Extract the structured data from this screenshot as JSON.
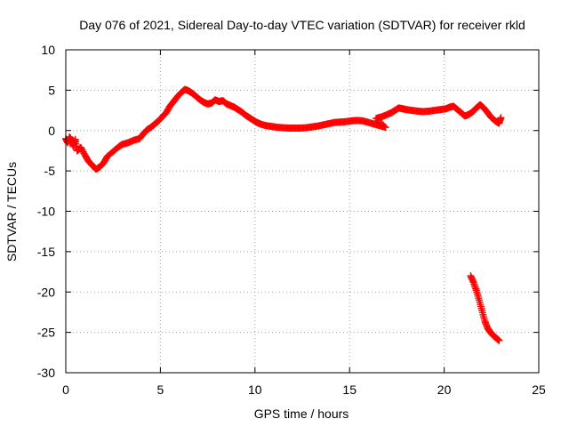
{
  "chart_data": {
    "type": "scatter",
    "title": "Day 076 of 2021, Sidereal Day-to-day VTEC variation (SDTVAR) for receiver rkld",
    "xlabel": "GPS time / hours",
    "ylabel": "SDTVAR / TECUs",
    "xlim": [
      0,
      25
    ],
    "ylim": [
      -30,
      10
    ],
    "xticks": [
      0,
      5,
      10,
      15,
      20,
      25
    ],
    "yticks": [
      -30,
      -25,
      -20,
      -15,
      -10,
      -5,
      0,
      5,
      10
    ],
    "grid": true,
    "marker": "+",
    "colors": {
      "series": "#ff0000",
      "grid": "#a0a0a0",
      "axis": "#000000"
    },
    "series": [
      {
        "name": "main",
        "points": [
          [
            0.0,
            -1.0
          ],
          [
            0.1,
            -1.5
          ],
          [
            0.2,
            -0.8
          ],
          [
            0.3,
            -1.2
          ],
          [
            0.4,
            -2.0
          ],
          [
            0.5,
            -1.1
          ],
          [
            0.6,
            -2.5
          ],
          [
            0.8,
            -2.1
          ],
          [
            1.0,
            -3.0
          ],
          [
            1.2,
            -3.8
          ],
          [
            1.4,
            -4.3
          ],
          [
            1.6,
            -4.8
          ],
          [
            1.8,
            -4.5
          ],
          [
            2.0,
            -4.0
          ],
          [
            2.2,
            -3.2
          ],
          [
            2.5,
            -2.6
          ],
          [
            2.8,
            -2.0
          ],
          [
            3.0,
            -1.7
          ],
          [
            3.3,
            -1.5
          ],
          [
            3.6,
            -1.2
          ],
          [
            3.9,
            -1.0
          ],
          [
            4.1,
            -0.4
          ],
          [
            4.3,
            0.1
          ],
          [
            4.5,
            0.4
          ],
          [
            4.7,
            0.8
          ],
          [
            4.9,
            1.2
          ],
          [
            5.1,
            1.7
          ],
          [
            5.3,
            2.2
          ],
          [
            5.5,
            3.0
          ],
          [
            5.7,
            3.6
          ],
          [
            5.9,
            4.2
          ],
          [
            6.1,
            4.7
          ],
          [
            6.3,
            5.1
          ],
          [
            6.5,
            4.9
          ],
          [
            6.7,
            4.6
          ],
          [
            6.9,
            4.2
          ],
          [
            7.1,
            3.8
          ],
          [
            7.3,
            3.5
          ],
          [
            7.5,
            3.3
          ],
          [
            7.7,
            3.4
          ],
          [
            7.9,
            3.8
          ],
          [
            8.1,
            3.6
          ],
          [
            8.3,
            3.7
          ],
          [
            8.5,
            3.3
          ],
          [
            8.7,
            3.1
          ],
          [
            8.9,
            2.9
          ],
          [
            9.1,
            2.6
          ],
          [
            9.3,
            2.3
          ],
          [
            9.5,
            1.9
          ],
          [
            9.7,
            1.6
          ],
          [
            9.9,
            1.3
          ],
          [
            10.1,
            1.0
          ],
          [
            10.3,
            0.8
          ],
          [
            10.6,
            0.6
          ],
          [
            10.9,
            0.5
          ],
          [
            11.2,
            0.4
          ],
          [
            11.5,
            0.35
          ],
          [
            11.8,
            0.3
          ],
          [
            12.1,
            0.3
          ],
          [
            12.4,
            0.3
          ],
          [
            12.7,
            0.35
          ],
          [
            13.0,
            0.45
          ],
          [
            13.3,
            0.55
          ],
          [
            13.6,
            0.7
          ],
          [
            13.9,
            0.85
          ],
          [
            14.2,
            1.0
          ],
          [
            14.5,
            1.05
          ],
          [
            14.8,
            1.1
          ],
          [
            15.1,
            1.2
          ],
          [
            15.4,
            1.25
          ],
          [
            15.7,
            1.2
          ],
          [
            16.0,
            1.0
          ],
          [
            16.3,
            0.8
          ],
          [
            16.6,
            0.6
          ],
          [
            16.9,
            0.4
          ],
          [
            16.4,
            1.5
          ],
          [
            16.7,
            1.7
          ],
          [
            17.0,
            2.0
          ],
          [
            17.2,
            2.2
          ],
          [
            17.4,
            2.5
          ],
          [
            17.6,
            2.8
          ],
          [
            17.8,
            2.7
          ],
          [
            18.0,
            2.6
          ],
          [
            18.3,
            2.5
          ],
          [
            18.6,
            2.4
          ],
          [
            18.9,
            2.35
          ],
          [
            19.2,
            2.4
          ],
          [
            19.5,
            2.5
          ],
          [
            19.8,
            2.6
          ],
          [
            20.1,
            2.7
          ],
          [
            20.3,
            2.9
          ],
          [
            20.5,
            3.0
          ],
          [
            20.7,
            2.6
          ],
          [
            20.9,
            2.2
          ],
          [
            21.1,
            1.8
          ],
          [
            21.3,
            2.0
          ],
          [
            21.5,
            2.3
          ],
          [
            21.7,
            2.8
          ],
          [
            21.9,
            3.2
          ],
          [
            22.1,
            2.8
          ],
          [
            22.3,
            2.2
          ],
          [
            22.5,
            1.6
          ],
          [
            22.7,
            1.2
          ],
          [
            22.9,
            0.9
          ],
          [
            23.0,
            1.6
          ]
        ]
      },
      {
        "name": "tail",
        "points": [
          [
            21.4,
            -18.0
          ],
          [
            21.55,
            -18.8
          ],
          [
            21.7,
            -19.8
          ],
          [
            21.85,
            -21.0
          ],
          [
            22.0,
            -22.3
          ],
          [
            22.15,
            -23.6
          ],
          [
            22.3,
            -24.5
          ],
          [
            22.45,
            -25.0
          ],
          [
            22.6,
            -25.4
          ],
          [
            22.75,
            -25.7
          ],
          [
            22.9,
            -26.0
          ]
        ]
      }
    ]
  }
}
